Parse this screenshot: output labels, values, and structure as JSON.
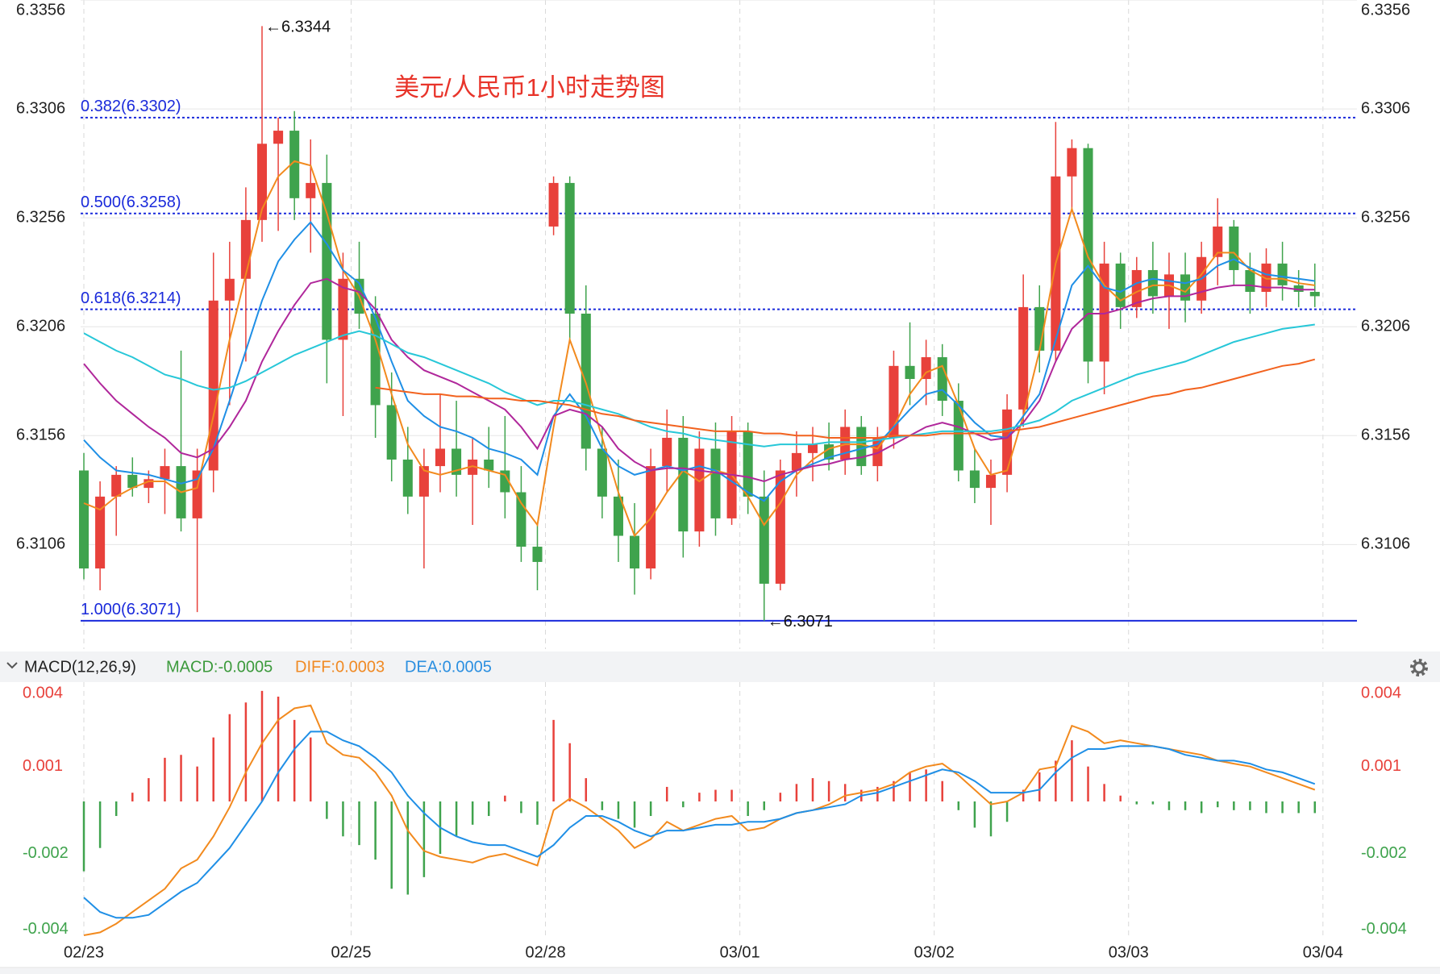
{
  "chart_data": [
    {
      "type": "candlestick",
      "title": "美元/人民币1小时走势图",
      "xlim": [
        -0.2,
        78.6
      ],
      "ylim": [
        6.3058,
        6.3356
      ],
      "yticks": [
        6.3356,
        6.3306,
        6.3256,
        6.3206,
        6.3156,
        6.3106
      ],
      "grid": true,
      "up_color": "#e8413b",
      "down_color": "#3fa34d",
      "open": [
        6.314,
        6.3095,
        6.3128,
        6.3138,
        6.3132,
        6.3136,
        6.3142,
        6.3118,
        6.314,
        6.3218,
        6.3228,
        6.3255,
        6.329,
        6.3296,
        6.3265,
        6.3272,
        6.32,
        6.3228,
        6.3212,
        6.317,
        6.3145,
        6.3128,
        6.3142,
        6.315,
        6.3138,
        6.3145,
        6.314,
        6.313,
        6.3105,
        6.3252,
        6.3272,
        6.3212,
        6.315,
        6.3128,
        6.311,
        6.3095,
        6.3142,
        6.3155,
        6.3112,
        6.315,
        6.3118,
        6.3158,
        6.3128,
        6.3088,
        6.314,
        6.3148,
        6.3152,
        6.3145,
        6.316,
        6.3142,
        6.3155,
        6.3188,
        6.3182,
        6.3192,
        6.3172,
        6.314,
        6.3132,
        6.3138,
        6.3168,
        6.3215,
        6.3195,
        6.3275,
        6.3288,
        6.319,
        6.3235,
        6.3215,
        6.3232,
        6.322,
        6.323,
        6.3218,
        6.3238,
        6.3252,
        6.3232,
        6.3222,
        6.3235,
        6.3225,
        6.3222
      ],
      "high": [
        6.3148,
        6.3135,
        6.3142,
        6.3146,
        6.314,
        6.315,
        6.3195,
        6.315,
        6.324,
        6.3245,
        6.327,
        6.3344,
        6.3302,
        6.3305,
        6.3292,
        6.3285,
        6.324,
        6.3245,
        6.322,
        6.3185,
        6.316,
        6.315,
        6.3175,
        6.3172,
        6.3155,
        6.316,
        6.3165,
        6.3142,
        6.3115,
        6.3275,
        6.3275,
        6.3225,
        6.316,
        6.3145,
        6.3125,
        6.315,
        6.3168,
        6.3165,
        6.3158,
        6.3162,
        6.3165,
        6.3162,
        6.314,
        6.3145,
        6.3158,
        6.316,
        6.3162,
        6.3168,
        6.3165,
        6.316,
        6.3195,
        6.3208,
        6.32,
        6.3198,
        6.318,
        6.315,
        6.3145,
        6.3175,
        6.323,
        6.3225,
        6.33,
        6.3292,
        6.329,
        6.3245,
        6.324,
        6.3238,
        6.3245,
        6.324,
        6.324,
        6.3245,
        6.3265,
        6.3255,
        6.324,
        6.3242,
        6.3245,
        6.3232,
        6.3235
      ],
      "low": [
        6.309,
        6.3085,
        6.311,
        6.3128,
        6.3125,
        6.312,
        6.3112,
        6.3075,
        6.313,
        6.317,
        6.319,
        6.3245,
        6.325,
        6.3255,
        6.324,
        6.318,
        6.3165,
        6.3205,
        6.3155,
        6.3135,
        6.312,
        6.3095,
        6.313,
        6.3128,
        6.3115,
        6.3132,
        6.3118,
        6.3098,
        6.3085,
        6.3248,
        6.32,
        6.314,
        6.3118,
        6.3098,
        6.3083,
        6.309,
        6.313,
        6.31,
        6.3105,
        6.311,
        6.3115,
        6.312,
        6.3071,
        6.3085,
        6.3128,
        6.3135,
        6.314,
        6.3138,
        6.3138,
        6.3135,
        6.315,
        6.317,
        6.317,
        6.3165,
        6.3135,
        6.3125,
        6.3115,
        6.313,
        6.316,
        6.3185,
        6.319,
        6.326,
        6.318,
        6.3175,
        6.3205,
        6.321,
        6.3212,
        6.3205,
        6.3208,
        6.3212,
        6.3225,
        6.3225,
        6.3212,
        6.3215,
        6.3218,
        6.3215,
        6.3215
      ],
      "close": [
        6.3095,
        6.3128,
        6.3138,
        6.3132,
        6.3136,
        6.3142,
        6.3118,
        6.314,
        6.3218,
        6.3228,
        6.3255,
        6.329,
        6.3296,
        6.3265,
        6.3272,
        6.32,
        6.3228,
        6.3212,
        6.317,
        6.3145,
        6.3128,
        6.3142,
        6.315,
        6.3138,
        6.3145,
        6.314,
        6.313,
        6.3105,
        6.3098,
        6.3272,
        6.3212,
        6.315,
        6.3128,
        6.311,
        6.3095,
        6.3142,
        6.3155,
        6.3112,
        6.315,
        6.3118,
        6.3158,
        6.3128,
        6.3088,
        6.314,
        6.3148,
        6.3152,
        6.3145,
        6.316,
        6.3142,
        6.3155,
        6.3188,
        6.3182,
        6.3192,
        6.3172,
        6.314,
        6.3132,
        6.3138,
        6.3168,
        6.3215,
        6.3195,
        6.3275,
        6.3288,
        6.319,
        6.3235,
        6.3215,
        6.3232,
        6.322,
        6.323,
        6.3218,
        6.3238,
        6.3252,
        6.3232,
        6.3222,
        6.3235,
        6.3225,
        6.3222,
        6.322
      ],
      "series": [
        {
          "color": "#f28a1e",
          "values": [
            6.3125,
            6.3122,
            6.3128,
            6.3132,
            6.3135,
            6.3135,
            6.313,
            6.3132,
            6.3165,
            6.32,
            6.323,
            6.326,
            6.3275,
            6.3282,
            6.328,
            6.3258,
            6.3232,
            6.322,
            6.32,
            6.3175,
            6.3152,
            6.314,
            6.3138,
            6.314,
            6.3142,
            6.314,
            6.3138,
            6.3125,
            6.3115,
            6.316,
            6.32,
            6.318,
            6.3155,
            6.313,
            6.311,
            6.3118,
            6.313,
            6.314,
            6.3135,
            6.314,
            6.3138,
            6.3128,
            6.3115,
            6.3125,
            6.3138,
            6.3145,
            6.315,
            6.3152,
            6.3152,
            6.315,
            6.316,
            6.3175,
            6.3185,
            6.3188,
            6.317,
            6.315,
            6.3138,
            6.314,
            6.3165,
            6.3195,
            6.3235,
            6.326,
            6.3238,
            6.3225,
            6.3218,
            6.3222,
            6.3225,
            6.3225,
            6.3222,
            6.323,
            6.324,
            6.324,
            6.3232,
            6.3228,
            6.3228,
            6.3226,
            6.3225
          ]
        },
        {
          "color": "#1f8fe6",
          "values": [
            6.3154,
            6.3146,
            6.314,
            6.3139,
            6.3138,
            6.3136,
            6.3134,
            6.3136,
            6.315,
            6.3172,
            6.3195,
            6.3218,
            6.3236,
            6.3246,
            6.3254,
            6.3244,
            6.3232,
            6.3226,
            6.321,
            6.319,
            6.3172,
            6.3165,
            6.316,
            6.3158,
            6.3155,
            6.315,
            6.3148,
            6.3145,
            6.3138,
            6.3165,
            6.3175,
            6.3165,
            6.315,
            6.3142,
            6.3138,
            6.314,
            6.3142,
            6.314,
            6.3142,
            6.314,
            6.3135,
            6.313,
            6.3126,
            6.3135,
            6.314,
            6.3143,
            6.3146,
            6.3148,
            6.315,
            6.3152,
            6.316,
            6.3168,
            6.3175,
            6.3177,
            6.317,
            6.3162,
            6.3156,
            6.3155,
            6.3165,
            6.3175,
            6.32,
            6.3225,
            6.3234,
            6.3224,
            6.3222,
            6.3226,
            6.3228,
            6.3227,
            6.3226,
            6.3228,
            6.3234,
            6.3237,
            6.3233,
            6.323,
            6.3229,
            6.3228,
            6.3227
          ]
        },
        {
          "color": "#b0279b",
          "values": [
            6.3189,
            6.318,
            6.3172,
            6.3166,
            6.316,
            6.3155,
            6.3148,
            6.3146,
            6.315,
            6.316,
            6.3172,
            6.319,
            6.3204,
            6.3216,
            6.3226,
            6.3228,
            6.3224,
            6.3222,
            6.3214,
            6.32,
            6.3192,
            6.3186,
            6.3183,
            6.318,
            6.3176,
            6.3172,
            6.3168,
            6.316,
            6.315,
            6.3165,
            6.3168,
            6.3166,
            6.316,
            6.315,
            6.3144,
            6.314,
            6.3141,
            6.3141,
            6.314,
            6.3139,
            6.3138,
            6.3137,
            6.3135,
            6.3138,
            6.314,
            6.3142,
            6.3143,
            6.3145,
            6.3146,
            6.3148,
            6.3152,
            6.3156,
            6.316,
            6.3162,
            6.316,
            6.3157,
            6.3154,
            6.3155,
            6.3162,
            6.3172,
            6.319,
            6.3205,
            6.3212,
            6.3212,
            6.3214,
            6.3217,
            6.3219,
            6.322,
            6.322,
            6.3222,
            6.3224,
            6.3225,
            6.3225,
            6.3224,
            6.3224,
            6.3223,
            6.3223
          ]
        },
        {
          "color": "#27c7d8",
          "values": [
            6.3203,
            6.3199,
            6.3195,
            6.3192,
            6.3188,
            6.3184,
            6.3182,
            6.3179,
            6.3177,
            6.3178,
            6.3181,
            6.3185,
            6.3189,
            6.3193,
            6.3196,
            6.3199,
            6.3202,
            6.3204,
            6.3202,
            6.3198,
            6.3194,
            6.3192,
            6.3189,
            6.3186,
            6.3183,
            6.318,
            6.3176,
            6.3173,
            6.317,
            6.3172,
            6.3172,
            6.317,
            6.3168,
            6.3166,
            6.3163,
            6.316,
            6.3158,
            6.3157,
            6.3155,
            6.3154,
            6.3153,
            6.3152,
            6.3151,
            6.3152,
            6.3152,
            6.3152,
            6.3153,
            6.3153,
            6.3153,
            6.3154,
            6.3155,
            6.3156,
            6.3157,
            6.3158,
            6.3158,
            6.3158,
            6.3158,
            6.3159,
            6.3161,
            6.3163,
            6.3167,
            6.3172,
            6.3175,
            6.3178,
            6.3181,
            6.3184,
            6.3186,
            6.3188,
            6.319,
            6.3193,
            6.3196,
            6.3199,
            6.3201,
            6.3203,
            6.3205,
            6.3206,
            6.3207
          ]
        },
        {
          "color": "#f2621e",
          "values": [
            null,
            null,
            null,
            null,
            null,
            null,
            null,
            null,
            null,
            null,
            null,
            null,
            null,
            null,
            null,
            null,
            null,
            null,
            6.3178,
            6.3177,
            6.3176,
            6.3175,
            6.3175,
            6.3174,
            6.3174,
            6.3173,
            6.3173,
            6.3172,
            6.3172,
            6.3171,
            6.317,
            6.3168,
            6.3166,
            6.3165,
            6.3163,
            6.3162,
            6.3161,
            6.316,
            6.3159,
            6.3158,
            6.3158,
            6.3158,
            6.3157,
            6.3157,
            6.3156,
            6.3156,
            6.3155,
            6.3155,
            6.3155,
            6.3155,
            6.3156,
            6.3156,
            6.3156,
            6.3157,
            6.3157,
            6.3157,
            6.3157,
            6.3158,
            6.3159,
            6.316,
            6.3162,
            6.3164,
            6.3166,
            6.3168,
            6.317,
            6.3172,
            6.3174,
            6.3175,
            6.3177,
            6.3178,
            6.318,
            6.3182,
            6.3184,
            6.3186,
            6.3188,
            6.3189,
            6.3191
          ]
        }
      ],
      "levels_color": "#1a2adb",
      "levels": [
        {
          "value": 6.3302,
          "label": "0.382(6.3302)",
          "style": "dotted"
        },
        {
          "value": 6.3258,
          "label": "0.500(6.3258)",
          "style": "dotted"
        },
        {
          "value": 6.3214,
          "label": "0.618(6.3214)",
          "style": "dotted"
        },
        {
          "value": 6.3071,
          "label": "1.000(6.3071)",
          "style": "solid"
        }
      ],
      "annotations": [
        {
          "index": 11,
          "value": 6.3344,
          "label": "←6.3344"
        },
        {
          "index": 42,
          "value": 6.3071,
          "label": "←6.3071"
        }
      ]
    },
    {
      "type": "macd",
      "indicator": "MACD(12,26,9)",
      "macd_text": "MACD:-0.0005",
      "diff_text": "DIFF:0.0003",
      "dea_text": "DEA:0.0005",
      "xlim": [
        -0.2,
        78.6
      ],
      "xticks": [
        {
          "value": 0,
          "label": "02/23"
        },
        {
          "value": 16.5,
          "label": "02/25"
        },
        {
          "value": 28.5,
          "label": "02/28"
        },
        {
          "value": 40.5,
          "label": "03/01"
        },
        {
          "value": 52.5,
          "label": "03/02"
        },
        {
          "value": 64.5,
          "label": "03/03"
        },
        {
          "value": 76.5,
          "label": "03/04"
        }
      ],
      "ylim": [
        -0.0046,
        0.0041
      ],
      "yticks": [
        {
          "value": 0.0037,
          "label": "0.004"
        },
        {
          "value": 0.0012,
          "label": "0.001"
        },
        {
          "value": -0.0018,
          "label": "-0.002"
        },
        {
          "value": -0.0044,
          "label": "-0.004"
        }
      ],
      "up_color": "#e8413b",
      "down_color": "#3fa34d",
      "histogram": [
        -0.0024,
        -0.0016,
        -0.0005,
        0.0003,
        0.0008,
        0.0015,
        0.0016,
        0.0012,
        0.0022,
        0.003,
        0.0034,
        0.0038,
        0.0036,
        0.0028,
        0.0022,
        -0.0006,
        -0.0012,
        -0.0015,
        -0.002,
        -0.003,
        -0.0032,
        -0.0026,
        -0.0018,
        -0.0012,
        -0.0008,
        -0.0005,
        0.0002,
        -0.0004,
        -0.0008,
        0.0028,
        0.002,
        0.0008,
        -0.0003,
        -0.0006,
        -0.0009,
        -0.0005,
        0.0005,
        -0.0002,
        0.0003,
        0.0004,
        0.0004,
        -0.0005,
        -0.0003,
        0.0003,
        0.0006,
        0.0008,
        0.0007,
        0.0006,
        0.0004,
        0.0005,
        0.0007,
        0.001,
        0.0011,
        0.0007,
        -0.0003,
        -0.0009,
        -0.0012,
        -0.0007,
        0.0004,
        0.001,
        0.0014,
        0.0021,
        0.0012,
        0.0006,
        0.0002,
        -0.0001,
        -0.0001,
        -0.0003,
        -0.0003,
        -0.0004,
        -0.0002,
        -0.0003,
        -0.0003,
        -0.0004,
        -0.0004,
        -0.0004,
        -0.0004
      ],
      "series": [
        {
          "color": "#f28a1e",
          "values": [
            -0.0046,
            -0.0045,
            -0.0042,
            -0.0038,
            -0.0034,
            -0.003,
            -0.0023,
            -0.002,
            -0.0012,
            -0.0002,
            0.001,
            0.002,
            0.0028,
            0.0032,
            0.0033,
            0.002,
            0.0016,
            0.0015,
            0.001,
            0.0002,
            -0.001,
            -0.0017,
            -0.0019,
            -0.002,
            -0.0021,
            -0.0019,
            -0.0018,
            -0.002,
            -0.0022,
            -0.0003,
            0.0001,
            -0.0002,
            -0.0006,
            -0.001,
            -0.0016,
            -0.0013,
            -0.0007,
            -0.001,
            -0.0008,
            -0.0006,
            -0.0005,
            -0.001,
            -0.0009,
            -0.0006,
            -0.0004,
            -0.0003,
            -0.0001,
            0.0002,
            0.0003,
            0.0004,
            0.0006,
            0.001,
            0.0012,
            0.0013,
            0.0009,
            0.0004,
            -0.0001,
            0,
            0.0003,
            0.0011,
            0.0012,
            0.0026,
            0.0024,
            0.002,
            0.0021,
            0.002,
            0.0019,
            0.0018,
            0.0017,
            0.0016,
            0.0014,
            0.0013,
            0.0012,
            0.001,
            0.0008,
            0.0006,
            0.0004
          ]
        },
        {
          "color": "#1f8fe6",
          "values": [
            -0.0033,
            -0.0038,
            -0.004,
            -0.004,
            -0.0039,
            -0.0035,
            -0.0031,
            -0.0028,
            -0.0022,
            -0.0016,
            -0.0008,
            0,
            0.001,
            0.0018,
            0.0024,
            0.0024,
            0.0021,
            0.0019,
            0.0015,
            0.001,
            0.0002,
            -0.0004,
            -0.0009,
            -0.0012,
            -0.0014,
            -0.0015,
            -0.0015,
            -0.0017,
            -0.0019,
            -0.0015,
            -0.0009,
            -0.0005,
            -0.0005,
            -0.0007,
            -0.001,
            -0.0012,
            -0.001,
            -0.001,
            -0.0009,
            -0.0008,
            -0.0008,
            -0.0007,
            -0.0007,
            -0.0006,
            -0.0004,
            -0.0003,
            -0.0002,
            -0.0001,
            0.0002,
            0.0003,
            0.0005,
            0.0007,
            0.0009,
            0.0011,
            0.001,
            0.0007,
            0.0003,
            0.0003,
            0.0003,
            0.0004,
            0.001,
            0.0015,
            0.0018,
            0.0018,
            0.0019,
            0.0019,
            0.0019,
            0.0018,
            0.0016,
            0.0015,
            0.0014,
            0.0014,
            0.0013,
            0.0011,
            0.001,
            0.0008,
            0.0006
          ]
        }
      ]
    }
  ]
}
